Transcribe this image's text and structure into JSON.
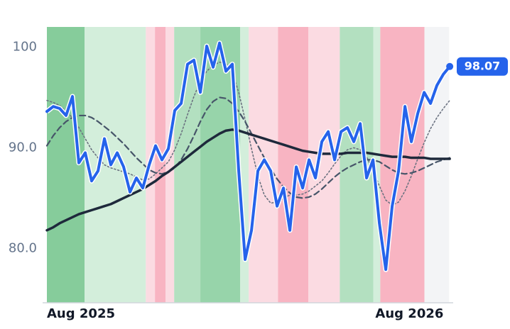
{
  "chart_data": {
    "type": "line",
    "xlim": [
      0,
      13.25
    ],
    "xticks": [
      {
        "value": 0,
        "label": "Aug 2025"
      },
      {
        "value": 12,
        "label": "Aug 2026"
      }
    ],
    "ylim": [
      74.6,
      102
    ],
    "yticks": [
      {
        "value": 80,
        "label": "80.0"
      },
      {
        "value": 90,
        "label": "90.0"
      },
      100
    ],
    "regions": [
      {
        "start": 0,
        "end": 1.24,
        "color": "#86cc9b"
      },
      {
        "start": 1.24,
        "end": 3.25,
        "color": "#d3eedb"
      },
      {
        "start": 3.25,
        "end": 3.55,
        "color": "#fbdbe2"
      },
      {
        "start": 3.55,
        "end": 3.9,
        "color": "#f8b4c2"
      },
      {
        "start": 3.9,
        "end": 4.18,
        "color": "#fbdbe2"
      },
      {
        "start": 4.18,
        "end": 5.04,
        "color": "#b3e0c0"
      },
      {
        "start": 5.04,
        "end": 6.35,
        "color": "#97d4aa"
      },
      {
        "start": 6.35,
        "end": 6.63,
        "color": "#d3eedb"
      },
      {
        "start": 6.63,
        "end": 7.59,
        "color": "#fbdbe2"
      },
      {
        "start": 7.59,
        "end": 8.59,
        "color": "#f8b4c2"
      },
      {
        "start": 8.59,
        "end": 9.62,
        "color": "#fbdbe2"
      },
      {
        "start": 9.62,
        "end": 10.72,
        "color": "#b3e0c0"
      },
      {
        "start": 10.72,
        "end": 10.95,
        "color": "#d3eedb"
      },
      {
        "start": 10.95,
        "end": 12.4,
        "color": "#f8b4c2"
      },
      {
        "start": 12.4,
        "end": 13.21,
        "color": "#f3f4f6"
      }
    ],
    "x": [
      0,
      0.21,
      0.42,
      0.63,
      0.84,
      1.05,
      1.26,
      1.47,
      1.68,
      1.89,
      2.1,
      2.31,
      2.52,
      2.73,
      2.94,
      3.15,
      3.36,
      3.57,
      3.78,
      3.99,
      4.2,
      4.41,
      4.62,
      4.83,
      5.04,
      5.25,
      5.46,
      5.67,
      5.88,
      6.09,
      6.3,
      6.51,
      6.72,
      6.93,
      7.14,
      7.35,
      7.56,
      7.77,
      7.98,
      8.19,
      8.4,
      8.61,
      8.82,
      9.03,
      9.24,
      9.45,
      9.66,
      9.87,
      10.08,
      10.29,
      10.5,
      10.71,
      10.92,
      11.13,
      11.34,
      11.55,
      11.76,
      11.97,
      12.18,
      12.39,
      12.6,
      12.81,
      13.02,
      13.23
    ],
    "series": [
      {
        "color": "#6b7280",
        "style": "dotted",
        "values": [
          94.7,
          94.5,
          94.2,
          93.6,
          93.0,
          92.0,
          90.9,
          89.8,
          89.0,
          88.3,
          88.0,
          87.8,
          87.6,
          87.4,
          87.1,
          86.8,
          86.9,
          87.4,
          88.0,
          88.6,
          89.8,
          91.4,
          93.3,
          95.1,
          96.6,
          97.6,
          98.2,
          98.5,
          98.4,
          97.5,
          95.5,
          92.8,
          89.9,
          87.2,
          85.3,
          84.5,
          84.6,
          85.0,
          85.3,
          85.3,
          85.4,
          85.7,
          86.2,
          86.7,
          87.5,
          88.4,
          89.2,
          89.8,
          90.0,
          89.8,
          89.1,
          87.8,
          86.2,
          84.8,
          84.3,
          84.6,
          85.7,
          87.2,
          88.9,
          90.5,
          91.9,
          93.0,
          93.9,
          94.7
        ]
      },
      {
        "color": "#475569",
        "style": "dashed",
        "values": [
          90.2,
          91.2,
          92.0,
          92.6,
          93.0,
          93.2,
          93.2,
          93.0,
          92.6,
          92.1,
          91.6,
          91.0,
          90.4,
          89.7,
          89.0,
          88.4,
          87.8,
          87.5,
          87.4,
          87.6,
          88.0,
          88.8,
          89.9,
          91.2,
          92.6,
          93.8,
          94.6,
          95.0,
          94.9,
          94.4,
          93.6,
          92.6,
          91.4,
          90.2,
          89.0,
          87.9,
          86.9,
          86.1,
          85.5,
          85.1,
          85.0,
          85.1,
          85.4,
          85.9,
          86.5,
          87.1,
          87.6,
          88.0,
          88.3,
          88.6,
          88.8,
          88.8,
          88.6,
          88.2,
          87.8,
          87.5,
          87.4,
          87.5,
          87.7,
          88.0,
          88.3,
          88.6,
          88.8,
          89.0
        ]
      },
      {
        "color": "#1e293b",
        "style": "thick",
        "values": [
          81.8,
          82.1,
          82.5,
          82.8,
          83.1,
          83.4,
          83.6,
          83.8,
          84.0,
          84.2,
          84.4,
          84.7,
          85.0,
          85.3,
          85.6,
          85.9,
          86.3,
          86.7,
          87.2,
          87.6,
          88.1,
          88.6,
          89.1,
          89.6,
          90.1,
          90.6,
          91.0,
          91.4,
          91.7,
          91.8,
          91.7,
          91.5,
          91.3,
          91.1,
          90.9,
          90.7,
          90.5,
          90.3,
          90.1,
          89.9,
          89.7,
          89.6,
          89.5,
          89.4,
          89.4,
          89.4,
          89.4,
          89.5,
          89.5,
          89.5,
          89.5,
          89.4,
          89.3,
          89.2,
          89.1,
          89.1,
          89.1,
          89.0,
          89.0,
          89.0,
          88.9,
          88.9,
          88.9,
          88.9
        ]
      },
      {
        "color": "#2563eb",
        "style": "main",
        "values": [
          93.6,
          94.1,
          93.9,
          93.2,
          95.1,
          88.5,
          89.5,
          86.7,
          87.7,
          90.9,
          88.3,
          89.5,
          88.1,
          85.6,
          87.0,
          86.0,
          88.3,
          90.2,
          88.8,
          89.9,
          93.7,
          94.4,
          98.3,
          98.7,
          95.5,
          100.1,
          98.0,
          100.4,
          97.6,
          98.3,
          87.7,
          78.9,
          81.8,
          87.7,
          88.8,
          87.7,
          84.2,
          86.0,
          81.8,
          88.1,
          86.0,
          88.8,
          87.0,
          90.6,
          91.6,
          88.8,
          91.6,
          92.0,
          90.6,
          92.4,
          87.0,
          88.8,
          82.5,
          77.9,
          84.2,
          87.7,
          94.1,
          90.6,
          93.4,
          95.5,
          94.4,
          96.2,
          97.3,
          98.07
        ]
      }
    ]
  }
}
